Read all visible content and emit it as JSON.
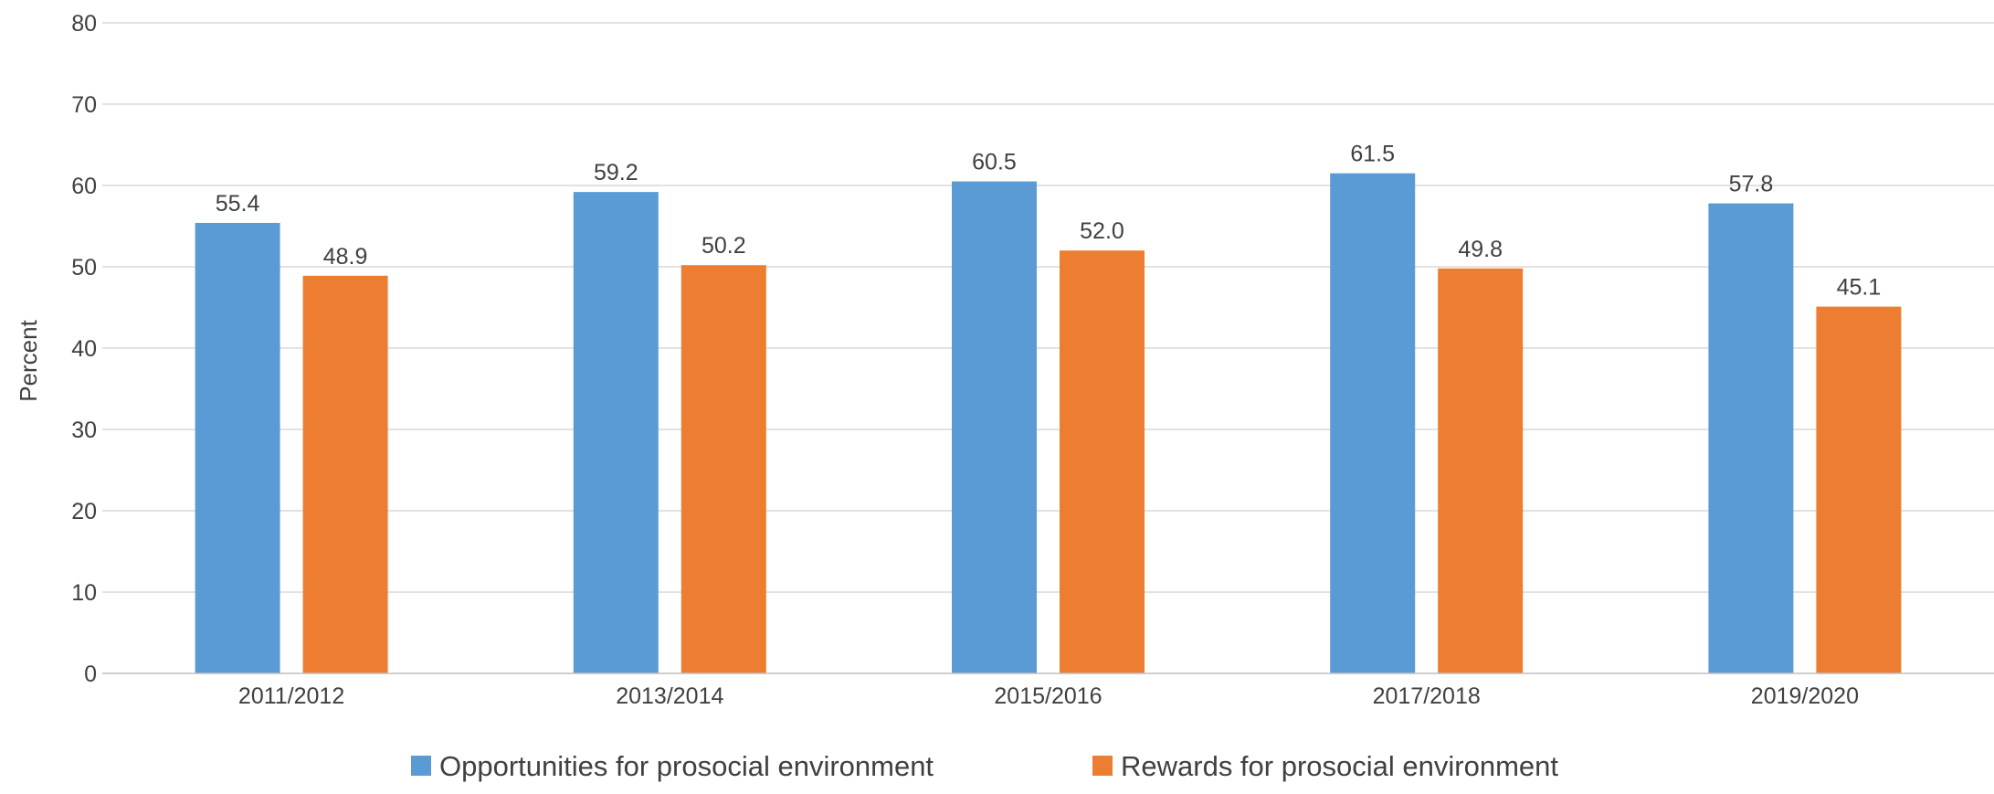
{
  "chart_data": {
    "type": "bar",
    "categories": [
      "2011/2012",
      "2013/2014",
      "2015/2016",
      "2017/2018",
      "2019/2020"
    ],
    "series": [
      {
        "name": "Opportunities for prosocial environment",
        "color": "#5b9bd5",
        "values": [
          55.4,
          59.2,
          60.5,
          61.5,
          57.8
        ],
        "labels": [
          "55.4",
          "59.2",
          "60.5",
          "61.5",
          "57.8"
        ]
      },
      {
        "name": "Rewards for prosocial environment",
        "color": "#ed7d31",
        "values": [
          48.9,
          50.2,
          52.0,
          49.8,
          45.1
        ],
        "labels": [
          "48.9",
          "50.2",
          "52.0",
          "49.8",
          "45.1"
        ]
      }
    ],
    "ylabel": "Percent",
    "ylim": [
      0,
      80
    ],
    "yticks": [
      "0",
      "10",
      "20",
      "30",
      "40",
      "50",
      "60",
      "70",
      "80"
    ],
    "grid": true,
    "legend_position": "bottom"
  }
}
